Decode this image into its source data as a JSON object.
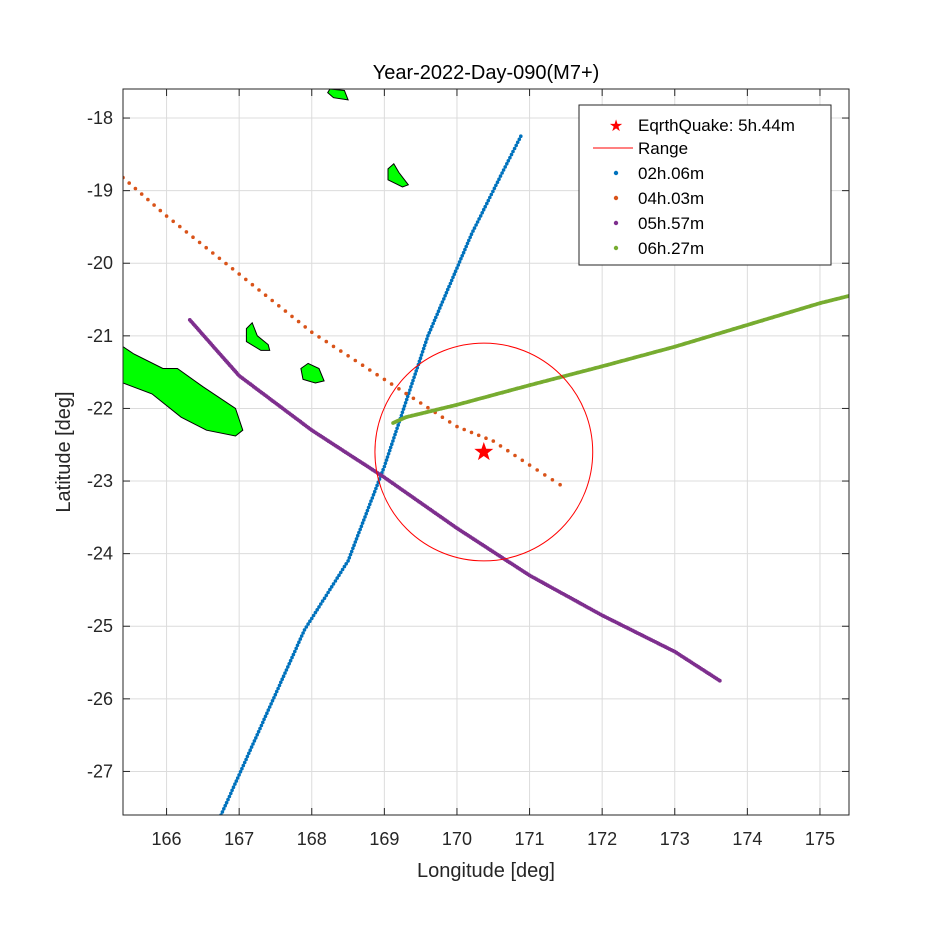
{
  "chart_data": {
    "type": "scatter",
    "title": "Year-2022-Day-090(M7+)",
    "xlabel": "Longitude [deg]",
    "ylabel": "Latitude [deg]",
    "xlim": [
      165.4,
      175.4
    ],
    "ylim": [
      -27.6,
      -17.6
    ],
    "xticks": [
      166,
      167,
      168,
      169,
      170,
      171,
      172,
      173,
      174,
      175
    ],
    "yticks": [
      -18,
      -19,
      -20,
      -21,
      -22,
      -23,
      -24,
      -25,
      -26,
      -27
    ],
    "grid": true,
    "legend_position": "top-right",
    "earthquake": {
      "name": "EqrthQuake: 5h.44m",
      "lon": 170.37,
      "lat": -22.6,
      "color": "#ff0000"
    },
    "range": {
      "name": "Range",
      "lon": 170.37,
      "lat": -22.6,
      "radius_deg": 1.5,
      "color": "#ff0000"
    },
    "series": [
      {
        "name": "02h.06m",
        "color": "#0072bd",
        "path": [
          [
            166.75,
            -27.6
          ],
          [
            167.9,
            -25.05
          ],
          [
            168.5,
            -24.1
          ],
          [
            169.0,
            -22.8
          ],
          [
            169.6,
            -21.0
          ],
          [
            170.2,
            -19.6
          ],
          [
            170.6,
            -18.8
          ],
          [
            170.88,
            -18.25
          ]
        ]
      },
      {
        "name": "04h.03m",
        "color": "#d95319",
        "path": [
          [
            165.4,
            -18.82
          ],
          [
            166.0,
            -19.35
          ],
          [
            167.0,
            -20.15
          ],
          [
            168.0,
            -20.95
          ],
          [
            169.0,
            -21.6
          ],
          [
            170.0,
            -22.25
          ],
          [
            170.5,
            -22.45
          ],
          [
            171.0,
            -22.78
          ],
          [
            171.42,
            -23.05
          ]
        ]
      },
      {
        "name": "05h.57m",
        "color": "#7e2f8e",
        "path": [
          [
            166.32,
            -20.78
          ],
          [
            167.0,
            -21.55
          ],
          [
            168.0,
            -22.3
          ],
          [
            169.0,
            -22.95
          ],
          [
            170.0,
            -23.65
          ],
          [
            171.0,
            -24.3
          ],
          [
            172.0,
            -24.85
          ],
          [
            173.0,
            -25.35
          ],
          [
            173.62,
            -25.75
          ]
        ]
      },
      {
        "name": "06h.27m",
        "color": "#77ac30",
        "path": [
          [
            169.12,
            -22.2
          ],
          [
            169.3,
            -22.12
          ],
          [
            170.0,
            -21.95
          ],
          [
            171.0,
            -21.68
          ],
          [
            172.0,
            -21.42
          ],
          [
            173.0,
            -21.15
          ],
          [
            174.0,
            -20.85
          ],
          [
            175.0,
            -20.55
          ],
          [
            175.4,
            -20.45
          ]
        ]
      }
    ],
    "landmasses": [
      {
        "color": "#00ff00",
        "outline": [
          [
            165.4,
            -21.15
          ],
          [
            165.55,
            -21.25
          ],
          [
            165.95,
            -21.45
          ],
          [
            166.15,
            -21.45
          ],
          [
            166.5,
            -21.7
          ],
          [
            166.95,
            -22.0
          ],
          [
            167.05,
            -22.3
          ],
          [
            166.95,
            -22.38
          ],
          [
            166.55,
            -22.3
          ],
          [
            166.2,
            -22.12
          ],
          [
            165.8,
            -21.8
          ],
          [
            165.4,
            -21.65
          ]
        ]
      },
      {
        "color": "#00ff00",
        "outline": [
          [
            168.25,
            -17.6
          ],
          [
            168.45,
            -17.62
          ],
          [
            168.5,
            -17.75
          ],
          [
            168.3,
            -17.72
          ],
          [
            168.22,
            -17.65
          ]
        ]
      },
      {
        "color": "#00ff00",
        "outline": [
          [
            169.05,
            -18.7
          ],
          [
            169.13,
            -18.63
          ],
          [
            169.2,
            -18.75
          ],
          [
            169.33,
            -18.92
          ],
          [
            169.25,
            -18.95
          ],
          [
            169.05,
            -18.85
          ]
        ]
      },
      {
        "color": "#00ff00",
        "outline": [
          [
            167.1,
            -20.9
          ],
          [
            167.18,
            -20.82
          ],
          [
            167.25,
            -21.0
          ],
          [
            167.4,
            -21.12
          ],
          [
            167.42,
            -21.2
          ],
          [
            167.3,
            -21.2
          ],
          [
            167.1,
            -21.08
          ]
        ]
      },
      {
        "color": "#00ff00",
        "outline": [
          [
            167.85,
            -21.45
          ],
          [
            167.95,
            -21.38
          ],
          [
            168.1,
            -21.45
          ],
          [
            168.17,
            -21.62
          ],
          [
            168.05,
            -21.65
          ],
          [
            167.88,
            -21.6
          ]
        ]
      }
    ]
  }
}
